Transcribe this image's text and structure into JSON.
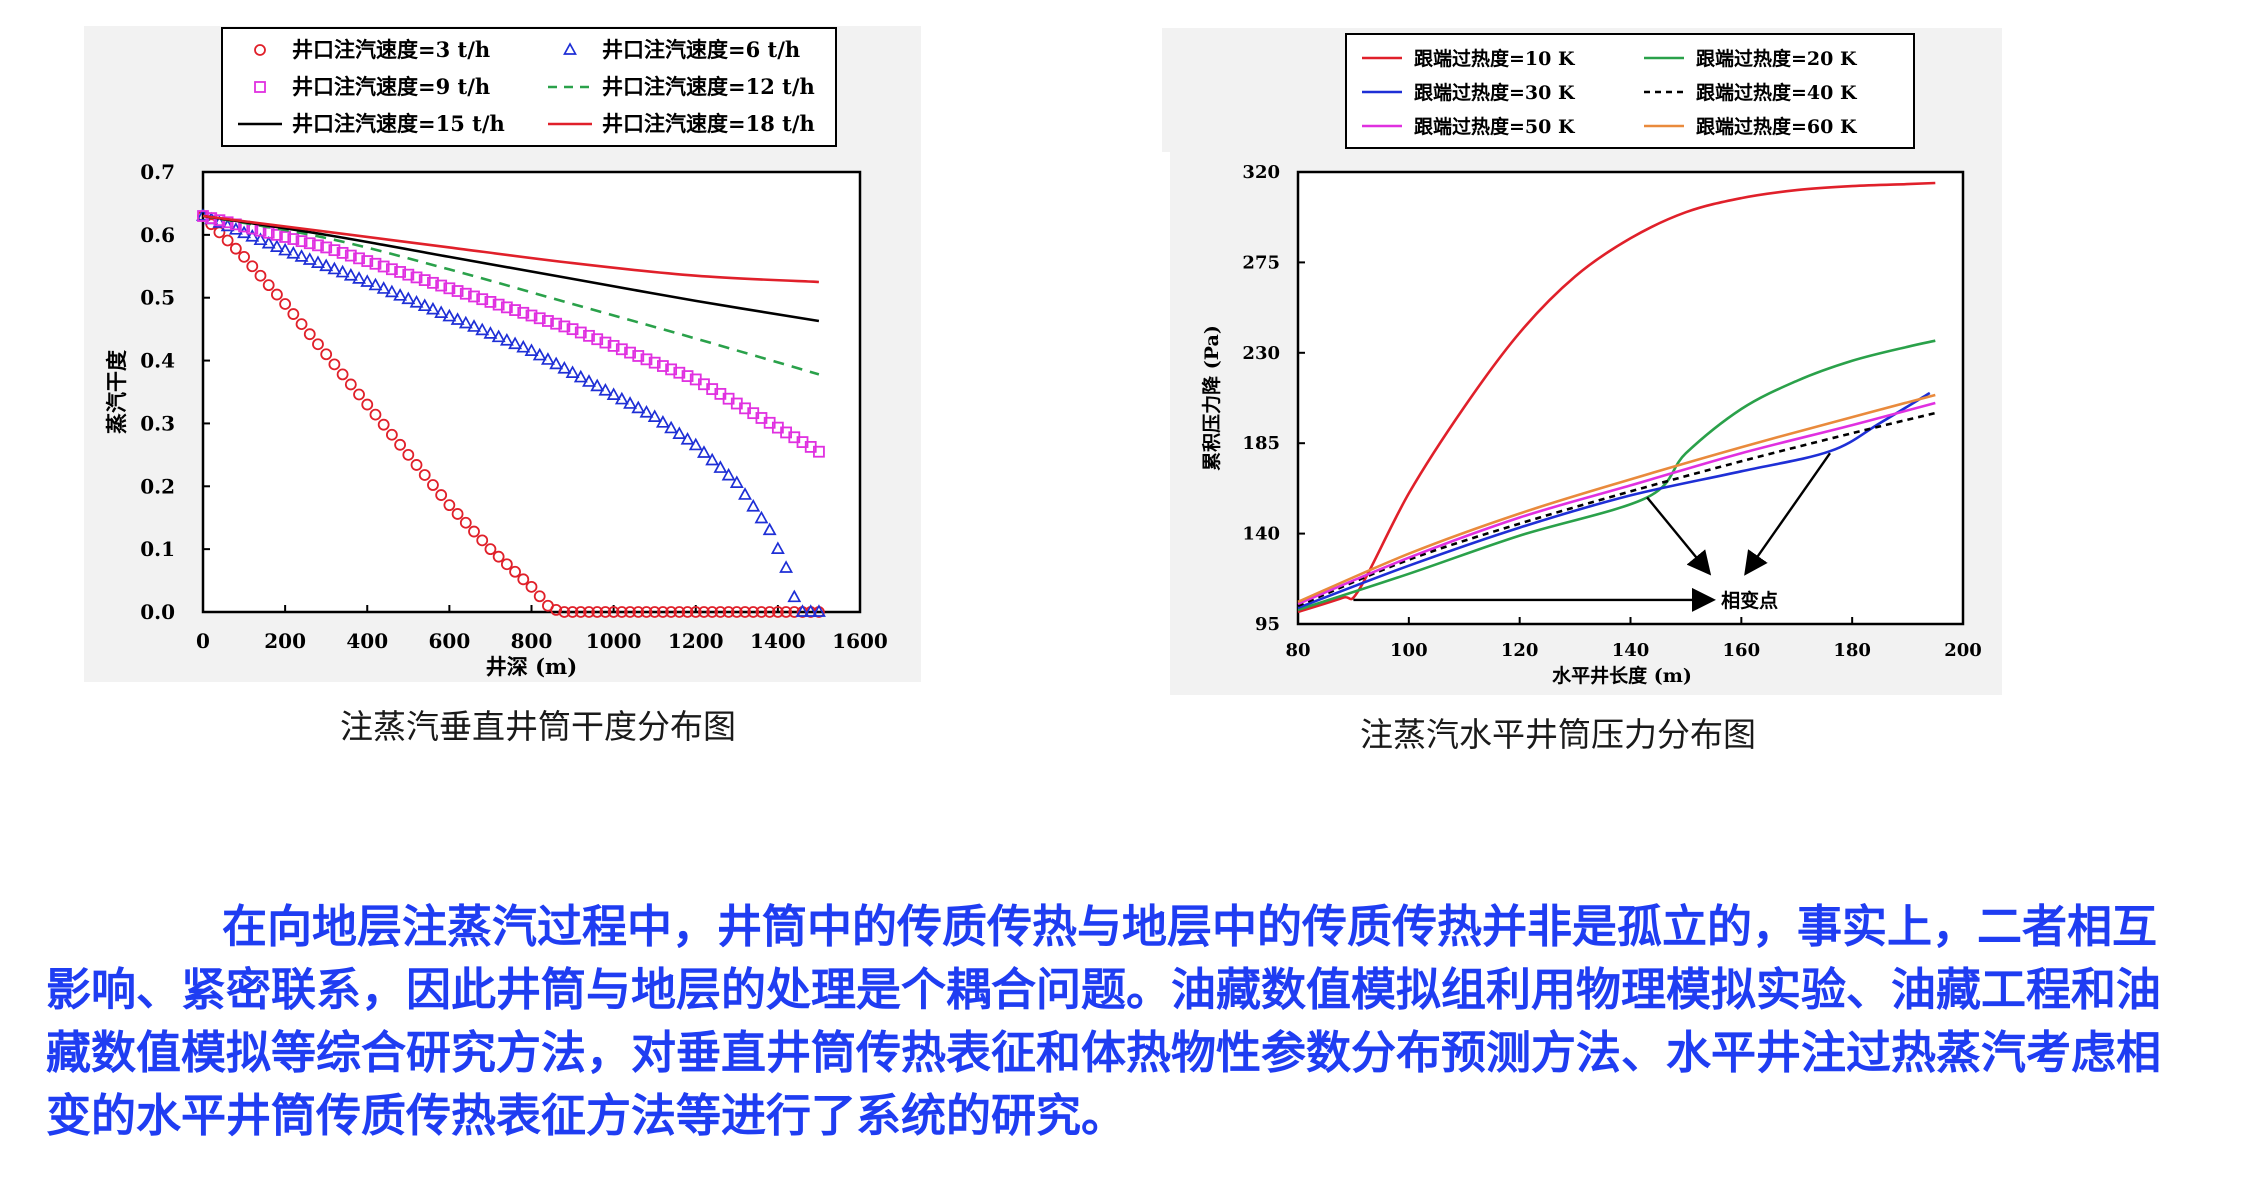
{
  "paragraph": "在向地层注蒸汽过程中，井筒中的传质传热与地层中的传质传热并非是孤立的，事实上，二者相互影响、紧密联系，因此井筒与地层的处理是个耦合问题。油藏数值模拟组利用物理模拟实验、油藏工程和油藏数值模拟等综合研究方法，对垂直井筒传热表征和体热物性参数分布预测方法、水平井注过热蒸汽考虑相变的水平井筒传质传热表征方法等进行了系统的研究。",
  "chart_data": [
    {
      "type": "line",
      "caption": "注蒸汽垂直井筒干度分布图",
      "xlabel": "井深 (m)",
      "ylabel": "蒸汽干度",
      "xlim": [
        0,
        1600
      ],
      "ylim": [
        0,
        0.7
      ],
      "xticks": [
        "0",
        "200",
        "400",
        "600",
        "800",
        "1000",
        "1200",
        "1400",
        "1600"
      ],
      "yticks": [
        "0.0",
        "0.1",
        "0.2",
        "0.3",
        "0.4",
        "0.5",
        "0.6",
        "0.7"
      ],
      "series": [
        {
          "name": "井口注汽速度=3 t/h",
          "color": "#e0202a",
          "marker": "circle",
          "x": [
            0,
            100,
            200,
            300,
            400,
            500,
            600,
            700,
            800,
            840,
            870,
            1500
          ],
          "y": [
            0.63,
            0.565,
            0.49,
            0.41,
            0.33,
            0.25,
            0.17,
            0.1,
            0.04,
            0.01,
            0.0,
            0.0
          ]
        },
        {
          "name": "井口注汽速度=6 t/h",
          "color": "#1e2fd6",
          "marker": "triangle",
          "x": [
            0,
            200,
            400,
            600,
            800,
            1000,
            1100,
            1200,
            1300,
            1380,
            1420,
            1450,
            1500
          ],
          "y": [
            0.63,
            0.575,
            0.525,
            0.47,
            0.415,
            0.345,
            0.31,
            0.265,
            0.205,
            0.13,
            0.07,
            0.0,
            0.0
          ]
        },
        {
          "name": "井口注汽速度=9 t/h",
          "color": "#e030e0",
          "marker": "square",
          "x": [
            0,
            300,
            600,
            900,
            1200,
            1500
          ],
          "y": [
            0.63,
            0.58,
            0.515,
            0.45,
            0.37,
            0.255
          ]
        },
        {
          "name": "井口注汽速度=12 t/h",
          "color": "#2aa14a",
          "marker": "dash",
          "x": [
            0,
            300,
            600,
            900,
            1200,
            1500
          ],
          "y": [
            0.63,
            0.595,
            0.545,
            0.49,
            0.435,
            0.378
          ]
        },
        {
          "name": "井口注汽速度=15 t/h",
          "color": "#000000",
          "marker": "line",
          "x": [
            0,
            300,
            600,
            900,
            1200,
            1500
          ],
          "y": [
            0.63,
            0.6,
            0.565,
            0.53,
            0.495,
            0.463
          ]
        },
        {
          "name": "井口注汽速度=18 t/h",
          "color": "#e0202a",
          "marker": "line",
          "x": [
            0,
            300,
            600,
            900,
            1200,
            1500
          ],
          "y": [
            0.63,
            0.605,
            0.58,
            0.555,
            0.535,
            0.525
          ]
        }
      ]
    },
    {
      "type": "line",
      "caption": "注蒸汽水平井筒压力分布图",
      "xlabel": "水平井长度 (m)",
      "ylabel": "累积压力降 (Pa)",
      "xlim": [
        80,
        200
      ],
      "ylim": [
        95,
        320
      ],
      "xticks": [
        "80",
        "100",
        "120",
        "140",
        "160",
        "180",
        "200"
      ],
      "yticks": [
        "95",
        "140",
        "185",
        "230",
        "275",
        "320"
      ],
      "annotation": "相变点",
      "series": [
        {
          "name": "跟端过热度=10 K",
          "color": "#e0202a",
          "dash": "",
          "x": [
            80,
            88,
            91,
            100,
            110,
            120,
            130,
            140,
            150,
            160,
            170,
            180,
            190,
            195
          ],
          "y": [
            101,
            108,
            112,
            160,
            203,
            240,
            268,
            287,
            300,
            307,
            311,
            313,
            314,
            314.5
          ]
        },
        {
          "name": "跟端过热度=20 K",
          "color": "#2aa14a",
          "dash": "",
          "x": [
            80,
            100,
            120,
            143,
            150,
            160,
            170,
            180,
            190,
            195
          ],
          "y": [
            102,
            120,
            139,
            158,
            180,
            202,
            216,
            226,
            233,
            236
          ]
        },
        {
          "name": "跟端过热度=30 K",
          "color": "#1e2fd6",
          "dash": "",
          "x": [
            80,
            100,
            120,
            140,
            160,
            176,
            185,
            194
          ],
          "y": [
            103,
            124,
            143,
            159,
            171,
            181,
            195,
            210
          ]
        },
        {
          "name": "跟端过热度=40 K",
          "color": "#000000",
          "dash": "6,5",
          "x": [
            80,
            100,
            120,
            140,
            160,
            180,
            195
          ],
          "y": [
            104,
            127,
            145,
            161,
            176,
            190,
            200
          ]
        },
        {
          "name": "跟端过热度=50 K",
          "color": "#e030e0",
          "dash": "",
          "x": [
            80,
            100,
            120,
            140,
            160,
            180,
            195
          ],
          "y": [
            105,
            128,
            148,
            164,
            180,
            194,
            205
          ]
        },
        {
          "name": "跟端过热度=60 K",
          "color": "#e98a3c",
          "dash": "",
          "x": [
            80,
            100,
            120,
            140,
            160,
            180,
            195
          ],
          "y": [
            106,
            130,
            150,
            167,
            183,
            198,
            209
          ]
        }
      ]
    }
  ]
}
